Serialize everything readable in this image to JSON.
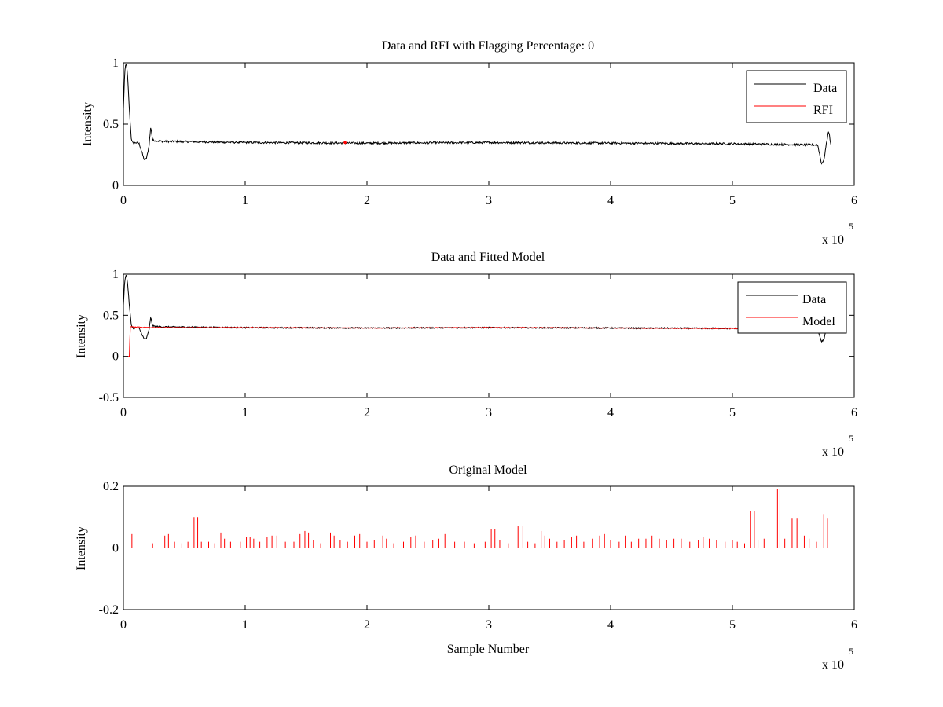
{
  "figure": {
    "background": "#ffffff"
  },
  "chart_data": [
    {
      "type": "line",
      "title": "Data and RFI with Flagging Percentage: 0",
      "xlabel": "",
      "ylabel": "Intensity",
      "xlim": [
        0,
        600000
      ],
      "ylim": [
        0,
        1
      ],
      "xticks": [
        0,
        100000,
        200000,
        300000,
        400000,
        500000,
        600000
      ],
      "xtick_labels": [
        "0",
        "1",
        "2",
        "3",
        "4",
        "5",
        "6"
      ],
      "yticks": [
        0,
        0.5,
        1
      ],
      "ytick_labels": [
        "0",
        "0.5",
        "1"
      ],
      "x_multiplier": {
        "base": "x 10",
        "exponent": "5"
      },
      "grid": false,
      "legend": {
        "position": "top-right",
        "entries": [
          "Data",
          "RFI"
        ]
      },
      "series": [
        {
          "name": "Data",
          "color": "#000000",
          "kind": "profile",
          "noise": 0.008,
          "x": [
            0,
            800,
            1500,
            2500,
            3500,
            5000,
            6500,
            8000,
            10000,
            13000,
            15500,
            17000,
            19000,
            21000,
            22500,
            24000,
            30000,
            100000,
            200000,
            300000,
            400000,
            500000,
            570000,
            571500,
            573000,
            575000,
            577000,
            579000,
            581000
          ],
          "y": [
            0.62,
            0.85,
            0.97,
            0.99,
            0.88,
            0.6,
            0.38,
            0.34,
            0.35,
            0.34,
            0.26,
            0.21,
            0.22,
            0.32,
            0.48,
            0.37,
            0.36,
            0.35,
            0.345,
            0.35,
            0.345,
            0.34,
            0.33,
            0.26,
            0.18,
            0.2,
            0.33,
            0.45,
            0.32
          ]
        },
        {
          "name": "RFI",
          "color": "#ff0000",
          "kind": "points",
          "x": [
            182000
          ],
          "y": [
            0.35
          ]
        }
      ]
    },
    {
      "type": "line",
      "title": "Data and Fitted Model",
      "xlabel": "",
      "ylabel": "Intensity",
      "xlim": [
        0,
        600000
      ],
      "ylim": [
        -0.5,
        1
      ],
      "xticks": [
        0,
        100000,
        200000,
        300000,
        400000,
        500000,
        600000
      ],
      "xtick_labels": [
        "0",
        "1",
        "2",
        "3",
        "4",
        "5",
        "6"
      ],
      "yticks": [
        -0.5,
        0,
        0.5,
        1
      ],
      "ytick_labels": [
        "-0.5",
        "0",
        "0.5",
        "1"
      ],
      "x_multiplier": {
        "base": "x 10",
        "exponent": "5"
      },
      "grid": false,
      "legend": {
        "position": "top-right",
        "entries": [
          "Data",
          "Model"
        ]
      },
      "series": [
        {
          "name": "Data",
          "color": "#000000",
          "kind": "profile",
          "noise": 0.008,
          "x": [
            0,
            800,
            1500,
            2500,
            3500,
            5000,
            6500,
            8000,
            10000,
            13000,
            15500,
            17000,
            19000,
            21000,
            22500,
            24000,
            30000,
            100000,
            200000,
            300000,
            400000,
            500000,
            570000,
            571500,
            573000,
            575000,
            577000,
            579000,
            581000
          ],
          "y": [
            0.62,
            0.85,
            0.97,
            0.99,
            0.88,
            0.6,
            0.38,
            0.34,
            0.35,
            0.34,
            0.26,
            0.21,
            0.22,
            0.32,
            0.48,
            0.37,
            0.36,
            0.35,
            0.345,
            0.35,
            0.345,
            0.34,
            0.33,
            0.26,
            0.18,
            0.2,
            0.33,
            0.45,
            0.32
          ]
        },
        {
          "name": "Model",
          "color": "#ff0000",
          "kind": "profile",
          "noise": 0.004,
          "x": [
            4000,
            5000,
            5200,
            5400,
            5600,
            20000,
            100000,
            200000,
            300000,
            400000,
            500000,
            581000
          ],
          "y": [
            0.0,
            0.0,
            0.37,
            0.0,
            0.36,
            0.35,
            0.35,
            0.345,
            0.35,
            0.345,
            0.34,
            0.33
          ]
        }
      ]
    },
    {
      "type": "line",
      "title": "Original Model",
      "xlabel": "Sample Number",
      "ylabel": "Intensity",
      "xlim": [
        0,
        600000
      ],
      "ylim": [
        -0.2,
        0.2
      ],
      "xticks": [
        0,
        100000,
        200000,
        300000,
        400000,
        500000,
        600000
      ],
      "xtick_labels": [
        "0",
        "1",
        "2",
        "3",
        "4",
        "5",
        "6"
      ],
      "yticks": [
        -0.2,
        0,
        0.2
      ],
      "ytick_labels": [
        "-0.2",
        "0",
        "0.2"
      ],
      "x_multiplier": {
        "base": "x 10",
        "exponent": "5"
      },
      "grid": false,
      "legend": null,
      "series": [
        {
          "color": "#ff0000",
          "kind": "spikes",
          "baseline": 0,
          "x_end": 581000,
          "spikes": [
            [
              7000,
              0.045
            ],
            [
              24000,
              0.015
            ],
            [
              30000,
              0.02
            ],
            [
              34000,
              0.04
            ],
            [
              37000,
              0.045
            ],
            [
              42000,
              0.02
            ],
            [
              48000,
              0.015
            ],
            [
              53000,
              0.02
            ],
            [
              58000,
              0.1
            ],
            [
              61000,
              0.1
            ],
            [
              64000,
              0.02
            ],
            [
              70000,
              0.02
            ],
            [
              75000,
              0.015
            ],
            [
              80000,
              0.05
            ],
            [
              83000,
              0.03
            ],
            [
              88000,
              0.02
            ],
            [
              96000,
              0.02
            ],
            [
              101000,
              0.035
            ],
            [
              104000,
              0.035
            ],
            [
              107000,
              0.03
            ],
            [
              112000,
              0.02
            ],
            [
              118000,
              0.035
            ],
            [
              122000,
              0.04
            ],
            [
              126000,
              0.04
            ],
            [
              133000,
              0.02
            ],
            [
              140000,
              0.02
            ],
            [
              145000,
              0.045
            ],
            [
              149000,
              0.055
            ],
            [
              152000,
              0.05
            ],
            [
              156000,
              0.025
            ],
            [
              162000,
              0.015
            ],
            [
              170000,
              0.05
            ],
            [
              173000,
              0.04
            ],
            [
              178000,
              0.025
            ],
            [
              184000,
              0.02
            ],
            [
              190000,
              0.04
            ],
            [
              194000,
              0.045
            ],
            [
              200000,
              0.02
            ],
            [
              206000,
              0.025
            ],
            [
              213000,
              0.04
            ],
            [
              216000,
              0.03
            ],
            [
              222000,
              0.015
            ],
            [
              230000,
              0.02
            ],
            [
              236000,
              0.035
            ],
            [
              240000,
              0.04
            ],
            [
              247000,
              0.02
            ],
            [
              254000,
              0.025
            ],
            [
              259000,
              0.03
            ],
            [
              264000,
              0.045
            ],
            [
              272000,
              0.02
            ],
            [
              280000,
              0.02
            ],
            [
              288000,
              0.015
            ],
            [
              297000,
              0.02
            ],
            [
              302000,
              0.06
            ],
            [
              305000,
              0.06
            ],
            [
              309000,
              0.025
            ],
            [
              316000,
              0.015
            ],
            [
              324000,
              0.07
            ],
            [
              328000,
              0.07
            ],
            [
              332000,
              0.02
            ],
            [
              338000,
              0.015
            ],
            [
              343000,
              0.055
            ],
            [
              346000,
              0.04
            ],
            [
              350000,
              0.03
            ],
            [
              356000,
              0.02
            ],
            [
              362000,
              0.025
            ],
            [
              368000,
              0.035
            ],
            [
              372000,
              0.04
            ],
            [
              378000,
              0.02
            ],
            [
              385000,
              0.03
            ],
            [
              391000,
              0.04
            ],
            [
              395000,
              0.045
            ],
            [
              400000,
              0.025
            ],
            [
              407000,
              0.02
            ],
            [
              412000,
              0.04
            ],
            [
              417000,
              0.02
            ],
            [
              423000,
              0.03
            ],
            [
              429000,
              0.03
            ],
            [
              434000,
              0.04
            ],
            [
              440000,
              0.03
            ],
            [
              446000,
              0.025
            ],
            [
              452000,
              0.03
            ],
            [
              458000,
              0.03
            ],
            [
              465000,
              0.02
            ],
            [
              472000,
              0.025
            ],
            [
              476000,
              0.035
            ],
            [
              481000,
              0.03
            ],
            [
              487000,
              0.025
            ],
            [
              494000,
              0.02
            ],
            [
              500000,
              0.025
            ],
            [
              504000,
              0.02
            ],
            [
              510000,
              0.015
            ],
            [
              515000,
              0.12
            ],
            [
              518000,
              0.12
            ],
            [
              521000,
              0.025
            ],
            [
              526000,
              0.03
            ],
            [
              530000,
              0.025
            ],
            [
              537000,
              0.19
            ],
            [
              539000,
              0.19
            ],
            [
              543000,
              0.03
            ],
            [
              549000,
              0.095
            ],
            [
              553000,
              0.095
            ],
            [
              559000,
              0.04
            ],
            [
              563000,
              0.03
            ],
            [
              569000,
              0.02
            ],
            [
              575000,
              0.11
            ],
            [
              578000,
              0.095
            ]
          ]
        }
      ]
    }
  ]
}
